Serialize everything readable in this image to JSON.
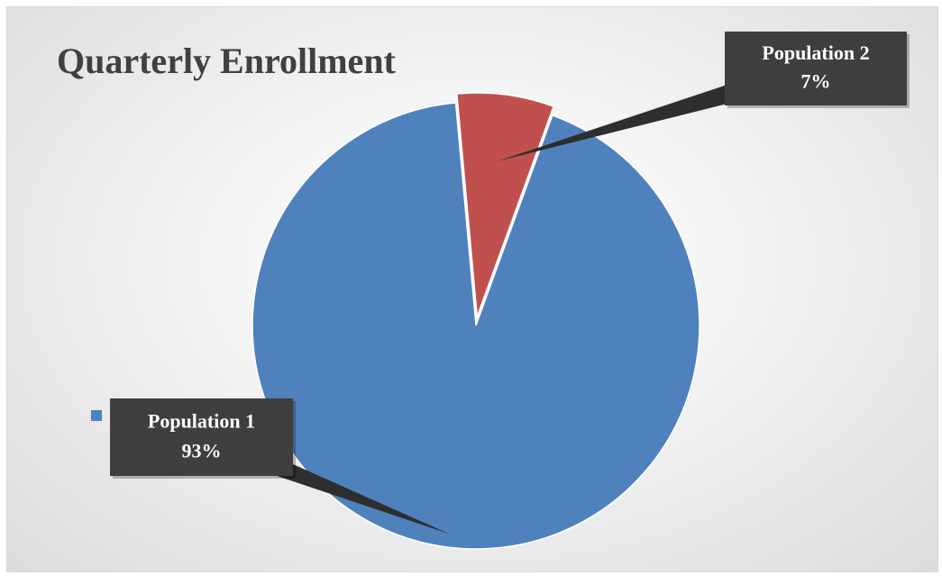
{
  "chart_data": {
    "type": "pie",
    "title": "Quarterly Enrollment",
    "slices": [
      {
        "label": "Population 1",
        "value": 93,
        "value_label": "93%",
        "color": "#4f81bd"
      },
      {
        "label": "Population 2",
        "value": 7,
        "value_label": "7%",
        "color": "#c0504d"
      }
    ],
    "start_angle_deg": 20,
    "direction": "clockwise",
    "exploded_slice": "Population 2",
    "legend": {
      "position": "left",
      "visible_entry": "Population 1"
    },
    "data_labels": "callouts"
  },
  "colors": {
    "callout_background": "#3a3a3a",
    "title": "#404040",
    "slice_border": "#ffffff"
  }
}
